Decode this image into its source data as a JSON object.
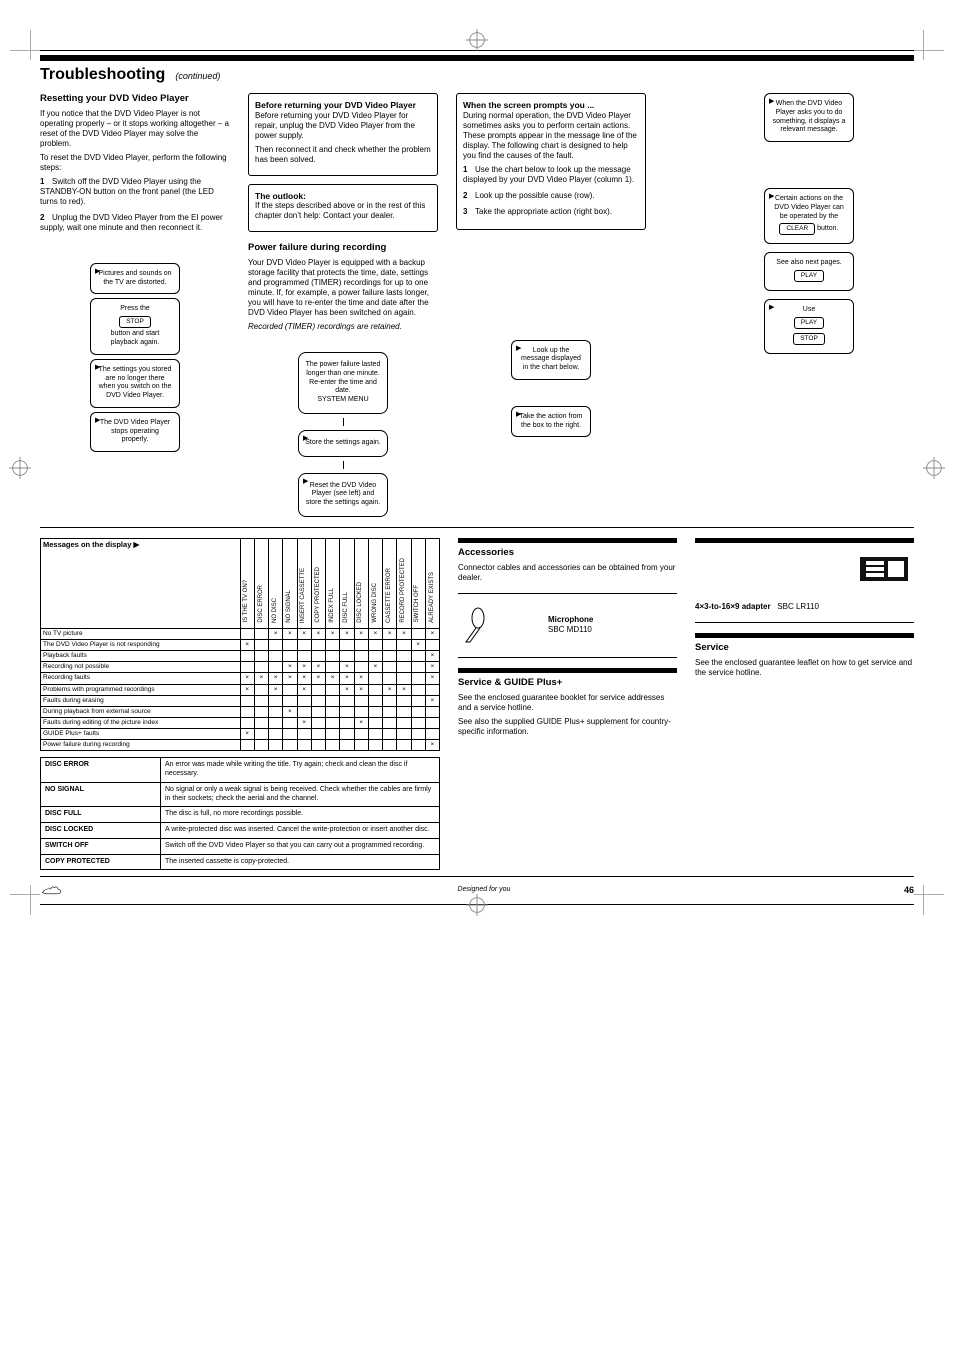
{
  "page_number": "46",
  "crop_marks": true,
  "header": {
    "bar": "thick",
    "title": "Troubleshooting",
    "subtitle": "(continued)"
  },
  "col1": {
    "heading": "Resetting your DVD Video Player",
    "p1": "If you notice that the DVD Video Player is not operating properly – or it stops working altogether – a reset of the DVD Video Player may solve the problem.",
    "p2": "To reset the DVD Video Player, perform the following steps:",
    "step1_n": "1",
    "step1": "Switch off the DVD Video Player using the STANDBY-ON button on the front panel (the LED turns to red).",
    "step2_n": "2",
    "step2": "Unplug the DVD Video Player from the EI power supply, wait one minute and then reconnect it."
  },
  "box_return": {
    "heading": "Before returning your DVD Video Player",
    "p1": "Before returning your DVD Video Player for repair, unplug the DVD Video Player from the power supply.",
    "p2": "Then reconnect it and check whether the problem has been solved."
  },
  "box_outlook": {
    "heading": "The outlook:",
    "p1": "If the steps described above or in the rest of this chapter don’t help: Contact your dealer."
  },
  "callouts_a": [
    {
      "text": "Pictures and sounds on the TV are distorted."
    },
    {
      "text": "Press the",
      "btn": "STOP",
      "text2": "button and start playback again."
    },
    {
      "text": "The settings you stored are no longer there when you switch on the DVD Video Player."
    },
    {
      "text": "The DVD Video Player stops operating properly."
    }
  ],
  "col2": {
    "heading": "Power failure during recording",
    "p": "Your DVD Video Player is equipped with a backup storage facility that protects the time, date, settings and programmed (TIMER) recordings for up to one minute. If, for example, a power failure lasts longer, you will have to re-enter the time and date after the DVD Video Player has been switched on again.",
    "note": "Recorded (TIMER) recordings are retained."
  },
  "flow": [
    {
      "text": "The power failure lasted longer than one minute. Re-enter the time and date.",
      "btn": "SYSTEM MENU"
    },
    {
      "text": "Store the settings again.",
      "btn": ""
    },
    {
      "text": "Reset the DVD Video Player (see left) and store the settings again."
    }
  ],
  "col3": {
    "heading": "When the screen prompts you ...",
    "p": "During normal operation, the DVD Video Player sometimes asks you to perform certain actions. These prompts appear in the message line of the display. The following chart is designed to help you find the causes of the fault.",
    "steps": [
      {
        "n": "1",
        "t": "Use the chart below to look up the message displayed by your DVD Video Player (column 1)."
      },
      {
        "n": "2",
        "t": "Look up the possible cause (row)."
      },
      {
        "n": "3",
        "t": "Take the appropriate action (right box)."
      }
    ]
  },
  "col3_callouts": [
    {
      "text": "Look up the message displayed in the chart below."
    },
    {
      "text": "Take the action from the box to the right."
    }
  ],
  "far_right": [
    {
      "text": "When the DVD Video Player asks you to do something, it displays a relevant message."
    },
    {
      "text": "Certain actions on the DVD Video Player can be operated by the",
      "btn": "CLEAR",
      "text2": "button."
    },
    {
      "text": "See also next pages."
    },
    {
      "text": "Use",
      "btn1": "PLAY",
      "btn2": "STOP",
      "text2": ""
    }
  ],
  "msg_table": {
    "caption": "Messages on the display  ▶",
    "cols": [
      "IS THE TV ON?",
      "DISC ERROR",
      "NO DISC",
      "NO SIGNAL",
      "INSERT CASSETTE",
      "COPY PROTECTED",
      "INDEX FULL",
      "DISC FULL",
      "DISC LOCKED",
      "WRONG DISC",
      "CASSETTE ERROR",
      "RECORD PROTECTED",
      "SWITCH OFF",
      "ALREADY EXISTS"
    ],
    "rows": [
      {
        "label": "No TV picture",
        "x": [
          0,
          0,
          1,
          1,
          1,
          1,
          1,
          1,
          1,
          1,
          1,
          1,
          0,
          1
        ]
      },
      {
        "label": "The DVD Video Player is not responding",
        "x": [
          1,
          0,
          0,
          0,
          0,
          0,
          0,
          0,
          0,
          0,
          0,
          0,
          1,
          0
        ]
      },
      {
        "label": "Playback faults",
        "x": [
          0,
          0,
          0,
          0,
          0,
          0,
          0,
          0,
          0,
          0,
          0,
          0,
          0,
          1
        ]
      },
      {
        "label": "Recording not possible",
        "x": [
          0,
          0,
          0,
          1,
          1,
          1,
          0,
          1,
          0,
          1,
          0,
          0,
          0,
          1
        ]
      },
      {
        "label": "Recording faults",
        "x": [
          1,
          1,
          1,
          1,
          1,
          1,
          1,
          1,
          1,
          0,
          0,
          0,
          0,
          1
        ]
      },
      {
        "label": "Problems with programmed recordings",
        "x": [
          1,
          0,
          1,
          0,
          1,
          0,
          0,
          1,
          1,
          0,
          1,
          1,
          0,
          0
        ]
      },
      {
        "label": "Faults during erasing",
        "x": [
          0,
          0,
          0,
          0,
          0,
          0,
          0,
          0,
          0,
          0,
          0,
          0,
          0,
          1
        ]
      },
      {
        "label": "During playback from external source",
        "x": [
          0,
          0,
          0,
          1,
          0,
          0,
          0,
          0,
          0,
          0,
          0,
          0,
          0,
          0
        ]
      },
      {
        "label": "Faults during editing of the picture index",
        "x": [
          0,
          0,
          0,
          0,
          1,
          0,
          0,
          0,
          1,
          0,
          0,
          0,
          0,
          0
        ]
      },
      {
        "label": "GUIDE Plus+ faults",
        "x": [
          1,
          0,
          0,
          0,
          0,
          0,
          0,
          0,
          0,
          0,
          0,
          0,
          0,
          0
        ]
      },
      {
        "label": "Power failure during recording",
        "x": [
          0,
          0,
          0,
          0,
          0,
          0,
          0,
          0,
          0,
          0,
          0,
          0,
          0,
          1
        ]
      }
    ]
  },
  "err_table": {
    "rows": [
      [
        "DISC ERROR",
        "An error was made while writing the title. Try again; check and clean the disc if necessary."
      ],
      [
        "NO SIGNAL",
        "No signal or only a weak signal is being received. Check whether the cables are firmly in their sockets; check the aerial and the channel."
      ],
      [
        "DISC FULL",
        "The disc is full, no more recordings possible."
      ],
      [
        "DISC LOCKED",
        "A write-protected disc was inserted. Cancel the write-protection or insert another disc."
      ],
      [
        "SWITCH OFF",
        "Switch off the DVD Video Player so that you can carry out a programmed recording."
      ],
      [
        "COPY PROTECTED",
        "The inserted cassette is copy-protected."
      ]
    ]
  },
  "right_block": {
    "title1": "Accessories",
    "p1": "Connector cables and accessories can be obtained from your dealer.",
    "accessories": [
      {
        "name": "Microphone",
        "code": "SBC MD110"
      },
      {
        "name": "4×3-to-16×9 adapter",
        "code": "SBC LR110"
      }
    ],
    "title2": "Service & GUIDE Plus+",
    "p2": "See the enclosed guarantee booklet for service addresses and a service hotline.",
    "p2b": "See also the supplied GUIDE Plus+ supplement for country-specific information.",
    "title3": "Service",
    "p3": "See the enclosed guarantee leaflet on how to get service and the service hotline."
  },
  "hand_note": "Designed for you"
}
